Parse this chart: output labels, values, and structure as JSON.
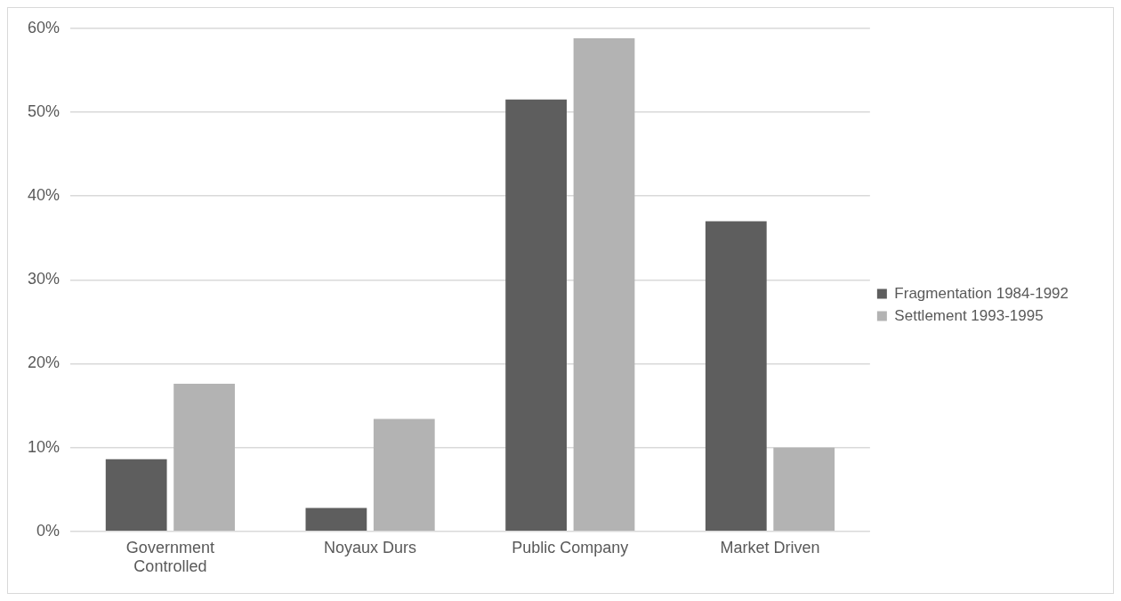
{
  "chart_data": {
    "type": "bar",
    "categories": [
      "Government Controlled",
      "Noyaux Durs",
      "Public Company",
      "Market Driven"
    ],
    "series": [
      {
        "name": "Fragmentation 1984-1992",
        "color": "#5e5e5e",
        "values": [
          8.6,
          2.8,
          51.5,
          37.0
        ]
      },
      {
        "name": "Settlement 1993-1995",
        "color": "#b3b3b3",
        "values": [
          17.6,
          13.4,
          58.8,
          10.0
        ]
      }
    ],
    "ylim": [
      0,
      60
    ],
    "yticks": [
      {
        "value": 0,
        "label": "0%"
      },
      {
        "value": 10,
        "label": "10%"
      },
      {
        "value": 20,
        "label": "20%"
      },
      {
        "value": 30,
        "label": "30%"
      },
      {
        "value": 40,
        "label": "40%"
      },
      {
        "value": 50,
        "label": "50%"
      },
      {
        "value": 60,
        "label": "60%"
      }
    ],
    "grid": "y",
    "legend": "right"
  }
}
